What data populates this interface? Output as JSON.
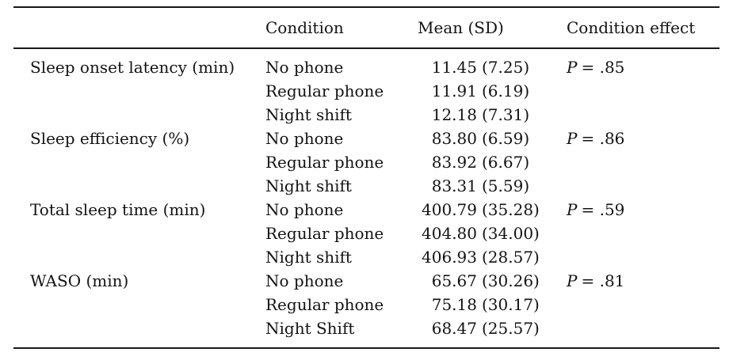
{
  "table": {
    "headers": {
      "measure": "",
      "condition": "Condition",
      "mean_sd": "Mean (SD)",
      "effect": "Condition effect"
    },
    "groups": [
      {
        "measure": "Sleep onset latency (min)",
        "effect": {
          "symbol": "P",
          "value": "= .85"
        },
        "rows": [
          {
            "condition": "No phone",
            "mean": "11.45",
            "sd": "(7.25)"
          },
          {
            "condition": "Regular phone",
            "mean": "11.91",
            "sd": "(6.19)"
          },
          {
            "condition": "Night shift",
            "mean": "12.18",
            "sd": "(7.31)"
          }
        ]
      },
      {
        "measure": "Sleep efficiency (%)",
        "effect": {
          "symbol": "P",
          "value": "= .86"
        },
        "rows": [
          {
            "condition": "No phone",
            "mean": "83.80",
            "sd": "(6.59)"
          },
          {
            "condition": "Regular phone",
            "mean": "83.92",
            "sd": "(6.67)"
          },
          {
            "condition": "Night shift",
            "mean": "83.31",
            "sd": "(5.59)"
          }
        ]
      },
      {
        "measure": "Total sleep time (min)",
        "effect": {
          "symbol": "P",
          "value": "= .59"
        },
        "rows": [
          {
            "condition": "No phone",
            "mean": "400.79",
            "sd": "(35.28)"
          },
          {
            "condition": "Regular phone",
            "mean": "404.80",
            "sd": "(34.00)"
          },
          {
            "condition": "Night shift",
            "mean": "406.93",
            "sd": "(28.57)"
          }
        ]
      },
      {
        "measure": "WASO (min)",
        "effect": {
          "symbol": "P",
          "value": "= .81"
        },
        "rows": [
          {
            "condition": "No phone",
            "mean": "65.67",
            "sd": "(30.26)"
          },
          {
            "condition": "Regular phone",
            "mean": "75.18",
            "sd": "(30.17)"
          },
          {
            "condition": "Night Shift",
            "mean": "68.47",
            "sd": "(25.57)"
          }
        ]
      }
    ]
  }
}
